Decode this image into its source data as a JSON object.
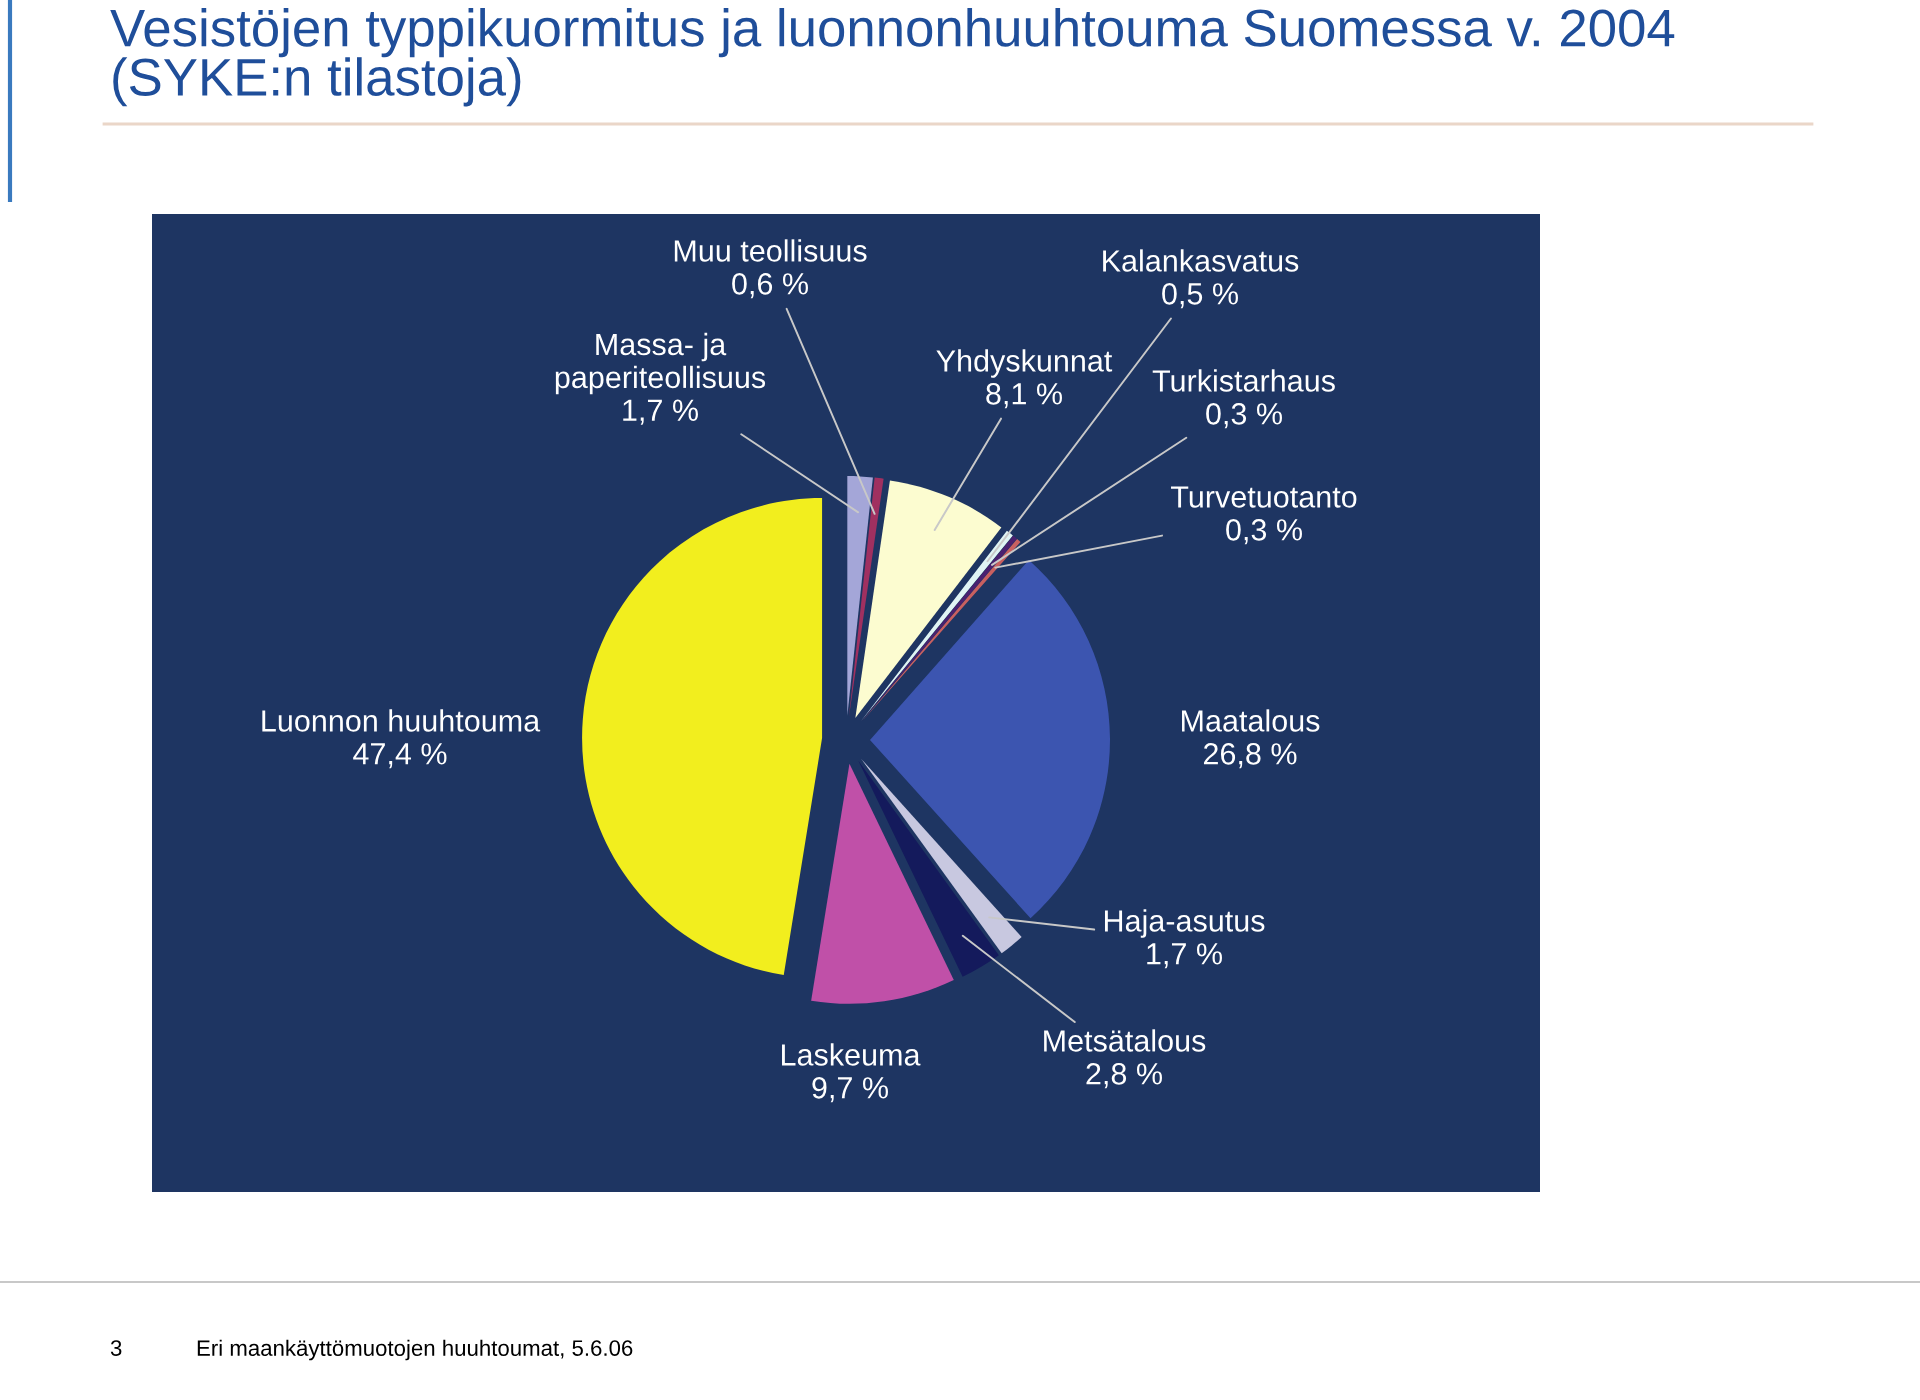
{
  "chart_data": {
    "type": "pie",
    "title": "Vesistöjen typpikuormitus ja luonnonhuuhtouma Suomessa v. 2004\n(SYKE:n tilastoja)",
    "categories": [
      "Massa- ja\npaperiteollisuus",
      "Muu teollisuus",
      "Yhdyskunnat",
      "Kalankasvatus",
      "Turkistarhaus",
      "Turvetuotanto",
      "Maatalous",
      "Haja-asutus",
      "Metsätalous",
      "Laskeuma",
      "Luonnon huuhtouma"
    ],
    "values": [
      1.7,
      0.6,
      8.1,
      0.5,
      0.3,
      0.3,
      26.8,
      1.7,
      2.8,
      9.7,
      47.4
    ],
    "value_labels": [
      "1,7 %",
      "0,6 %",
      "8,1 %",
      "0,5 %",
      "0,3 %",
      "0,3 %",
      "26,8 %",
      "1,7 %",
      "2,8 %",
      "9,7 %",
      "47,4 %"
    ],
    "colors": [
      "#a4a6d8",
      "#a03060",
      "#fcfcd0",
      "#e0f4f4",
      "#4a2070",
      "#c86060",
      "#3c55b0",
      "#c8c8e0",
      "#141a5c",
      "#c050a8",
      "#f2ee1e"
    ],
    "annotations": [
      "3",
      "Eri maankäyttömuotojen huuhtoumat, 5.6.06"
    ]
  }
}
